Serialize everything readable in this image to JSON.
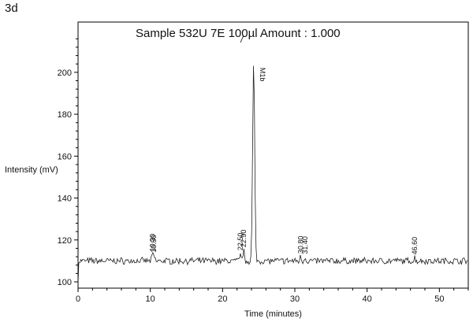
{
  "panel_label": "3d",
  "chart_data": {
    "type": "line",
    "title": "Sample 532U 7E 100µl  Amount : 1.000",
    "xlabel": "Time (minutes)",
    "ylabel": "Intensity (mV)",
    "xlim": [
      0,
      54
    ],
    "ylim": [
      97,
      224
    ],
    "x_ticks": [
      0,
      10,
      20,
      30,
      40,
      50
    ],
    "y_ticks": [
      100,
      120,
      140,
      160,
      180,
      200
    ],
    "baseline": 110,
    "grid": false,
    "legend": "none",
    "series": [
      {
        "peaks": [
          {
            "label": "10.30",
            "x": 10.3,
            "y": 113.0
          },
          {
            "label": "10.50",
            "x": 10.5,
            "y": 112.5
          },
          {
            "label": "22.50",
            "x": 22.5,
            "y": 113.5
          },
          {
            "label": "22.90",
            "x": 22.9,
            "y": 115.0
          },
          {
            "label": "M1b",
            "x": 24.3,
            "y": 204.5
          },
          {
            "label": "30.80",
            "x": 30.8,
            "y": 112.0
          },
          {
            "label": "31.40",
            "x": 31.4,
            "y": 111.8
          },
          {
            "label": "46.60",
            "x": 46.6,
            "y": 111.5
          }
        ]
      }
    ]
  },
  "colors": {
    "trace": "#222222",
    "axis": "#000000"
  }
}
